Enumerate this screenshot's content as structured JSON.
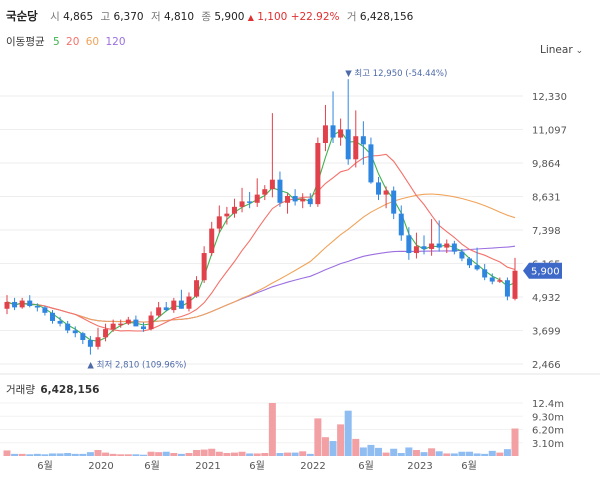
{
  "header": {
    "stock_name": "국순당",
    "open_label": "시",
    "open": "4,865",
    "high_label": "고",
    "high": "6,370",
    "low_label": "저",
    "low": "4,810",
    "close_label": "종",
    "close": "5,900",
    "change_arrow": "▲",
    "change": "1,100",
    "change_pct": "+22.92%",
    "volume_label": "거",
    "volume": "6,428,156"
  },
  "moving_average": {
    "label": "이동평균",
    "periods": [
      {
        "value": "5",
        "color": "#3fb34f"
      },
      {
        "value": "20",
        "color": "#f4726b"
      },
      {
        "value": "60",
        "color": "#f0a35a"
      },
      {
        "value": "120",
        "color": "#9b6fe0"
      }
    ]
  },
  "scale_selector": {
    "label": "Linear",
    "icon": "chevron-down-icon"
  },
  "colors": {
    "up": "#e0414a",
    "down": "#2f86e0",
    "vol_up": "#f2a0a4",
    "vol_down": "#8fbdf2",
    "current_tag": "#3d68c8",
    "annotation": "#4e6aa8"
  },
  "chart_data": {
    "type": "candlestick",
    "price_axis_ticks": [
      "12,330",
      "11,097",
      "9,864",
      "8,631",
      "7,398",
      "6,165",
      "4,932",
      "3,699",
      "2,466"
    ],
    "price_axis_values": [
      12330,
      11097,
      9864,
      8631,
      7398,
      6165,
      4932,
      3699,
      2466
    ],
    "current_price_label": "5,900",
    "current_price": 5900,
    "high_marker": {
      "arrow": "▼",
      "label": "최고",
      "value": "12,950",
      "pct": "(-54.44%)"
    },
    "low_marker": {
      "arrow": "▲",
      "label": "최저",
      "value": "2,810",
      "pct": "(109.96%)"
    },
    "x_axis_labels": [
      "6월",
      "2020",
      "6월",
      "2021",
      "6월",
      "2022",
      "6월",
      "2023",
      "6월"
    ],
    "volume_title": "거래량",
    "volume_value": "6,428,156",
    "volume_axis_ticks": [
      "12.4m",
      "9.30m",
      "6.20m",
      "3.10m"
    ],
    "volume_axis_values": [
      12.4,
      9.3,
      6.2,
      3.1
    ],
    "candles": [
      {
        "o": 4500,
        "h": 5000,
        "l": 4300,
        "c": 4750
      },
      {
        "o": 4750,
        "h": 4900,
        "l": 4450,
        "c": 4550
      },
      {
        "o": 4550,
        "h": 4900,
        "l": 4500,
        "c": 4800
      },
      {
        "o": 4800,
        "h": 5000,
        "l": 4550,
        "c": 4600
      },
      {
        "o": 4600,
        "h": 4700,
        "l": 4400,
        "c": 4550
      },
      {
        "o": 4550,
        "h": 4600,
        "l": 4250,
        "c": 4350
      },
      {
        "o": 4350,
        "h": 4450,
        "l": 3950,
        "c": 4050
      },
      {
        "o": 4050,
        "h": 4200,
        "l": 3850,
        "c": 3950
      },
      {
        "o": 3950,
        "h": 4050,
        "l": 3600,
        "c": 3700
      },
      {
        "o": 3700,
        "h": 3850,
        "l": 3450,
        "c": 3600
      },
      {
        "o": 3600,
        "h": 3650,
        "l": 3200,
        "c": 3350
      },
      {
        "o": 3350,
        "h": 3500,
        "l": 2810,
        "c": 3100
      },
      {
        "o": 3100,
        "h": 3800,
        "l": 3000,
        "c": 3450
      },
      {
        "o": 3450,
        "h": 3950,
        "l": 3300,
        "c": 3750
      },
      {
        "o": 3750,
        "h": 4100,
        "l": 3650,
        "c": 3950
      },
      {
        "o": 3950,
        "h": 4100,
        "l": 3800,
        "c": 3950
      },
      {
        "o": 3950,
        "h": 4200,
        "l": 3900,
        "c": 4100
      },
      {
        "o": 4100,
        "h": 4250,
        "l": 3950,
        "c": 3850
      },
      {
        "o": 3850,
        "h": 4000,
        "l": 3650,
        "c": 3750
      },
      {
        "o": 3750,
        "h": 4400,
        "l": 3700,
        "c": 4250
      },
      {
        "o": 4250,
        "h": 4750,
        "l": 4200,
        "c": 4550
      },
      {
        "o": 4550,
        "h": 4750,
        "l": 4400,
        "c": 4450
      },
      {
        "o": 4450,
        "h": 4900,
        "l": 4350,
        "c": 4800
      },
      {
        "o": 4800,
        "h": 5200,
        "l": 4500,
        "c": 4500
      },
      {
        "o": 4500,
        "h": 5100,
        "l": 4400,
        "c": 4950
      },
      {
        "o": 4950,
        "h": 5700,
        "l": 4900,
        "c": 5550
      },
      {
        "o": 5550,
        "h": 6800,
        "l": 5450,
        "c": 6550
      },
      {
        "o": 6550,
        "h": 7700,
        "l": 6450,
        "c": 7450
      },
      {
        "o": 7450,
        "h": 8300,
        "l": 7300,
        "c": 7900
      },
      {
        "o": 7900,
        "h": 8250,
        "l": 7600,
        "c": 8000
      },
      {
        "o": 8000,
        "h": 8550,
        "l": 7850,
        "c": 8250
      },
      {
        "o": 8250,
        "h": 8950,
        "l": 8050,
        "c": 8450
      },
      {
        "o": 8450,
        "h": 8800,
        "l": 8200,
        "c": 8400
      },
      {
        "o": 8400,
        "h": 9300,
        "l": 8250,
        "c": 8700
      },
      {
        "o": 8700,
        "h": 9050,
        "l": 8500,
        "c": 8900
      },
      {
        "o": 8900,
        "h": 11700,
        "l": 8600,
        "c": 9250
      },
      {
        "o": 9250,
        "h": 9550,
        "l": 8250,
        "c": 8400
      },
      {
        "o": 8400,
        "h": 8750,
        "l": 8000,
        "c": 8650
      },
      {
        "o": 8650,
        "h": 8900,
        "l": 8300,
        "c": 8450
      },
      {
        "o": 8450,
        "h": 8750,
        "l": 8200,
        "c": 8550
      },
      {
        "o": 8550,
        "h": 8750,
        "l": 8250,
        "c": 8350
      },
      {
        "o": 8350,
        "h": 10800,
        "l": 8250,
        "c": 10600
      },
      {
        "o": 10600,
        "h": 12000,
        "l": 10300,
        "c": 11250
      },
      {
        "o": 11250,
        "h": 12500,
        "l": 10600,
        "c": 10800
      },
      {
        "o": 10800,
        "h": 11500,
        "l": 10500,
        "c": 11100
      },
      {
        "o": 11100,
        "h": 12950,
        "l": 9800,
        "c": 10000
      },
      {
        "o": 10000,
        "h": 11800,
        "l": 9700,
        "c": 10850
      },
      {
        "o": 10850,
        "h": 11400,
        "l": 9800,
        "c": 10550
      },
      {
        "o": 10550,
        "h": 10800,
        "l": 9100,
        "c": 9150
      },
      {
        "o": 9150,
        "h": 9350,
        "l": 8500,
        "c": 8700
      },
      {
        "o": 8700,
        "h": 9000,
        "l": 8200,
        "c": 8850
      },
      {
        "o": 8850,
        "h": 9000,
        "l": 7800,
        "c": 8000
      },
      {
        "o": 8000,
        "h": 8300,
        "l": 7000,
        "c": 7200
      },
      {
        "o": 7200,
        "h": 7500,
        "l": 6300,
        "c": 6550
      },
      {
        "o": 6550,
        "h": 7300,
        "l": 6350,
        "c": 6800
      },
      {
        "o": 6800,
        "h": 7200,
        "l": 6500,
        "c": 6700
      },
      {
        "o": 6700,
        "h": 7800,
        "l": 6450,
        "c": 6900
      },
      {
        "o": 6900,
        "h": 7750,
        "l": 6600,
        "c": 6750
      },
      {
        "o": 6750,
        "h": 7050,
        "l": 6550,
        "c": 6900
      },
      {
        "o": 6900,
        "h": 7000,
        "l": 6500,
        "c": 6600
      },
      {
        "o": 6600,
        "h": 6700,
        "l": 6250,
        "c": 6350
      },
      {
        "o": 6350,
        "h": 6400,
        "l": 6000,
        "c": 6100
      },
      {
        "o": 6100,
        "h": 6750,
        "l": 5900,
        "c": 5950
      },
      {
        "o": 5950,
        "h": 6150,
        "l": 5550,
        "c": 5650
      },
      {
        "o": 5650,
        "h": 5800,
        "l": 5400,
        "c": 5500
      },
      {
        "o": 5500,
        "h": 5650,
        "l": 5450,
        "c": 5550
      },
      {
        "o": 5550,
        "h": 5650,
        "l": 4810,
        "c": 4950
      },
      {
        "o": 4865,
        "h": 6370,
        "l": 4810,
        "c": 5900
      }
    ],
    "volumes": [
      1.3,
      0.5,
      0.5,
      0.4,
      0.5,
      0.4,
      0.6,
      0.6,
      0.7,
      0.5,
      0.5,
      0.9,
      1.4,
      0.8,
      0.5,
      0.4,
      0.4,
      0.4,
      0.3,
      1.0,
      0.9,
      1.0,
      0.7,
      0.5,
      0.7,
      1.4,
      1.5,
      1.7,
      1.0,
      0.7,
      0.8,
      1.0,
      0.6,
      0.6,
      0.7,
      12.4,
      0.7,
      0.8,
      0.8,
      1.1,
      0.5,
      8.8,
      4.4,
      3.5,
      7.4,
      10.6,
      4.0,
      2.0,
      2.6,
      1.9,
      0.8,
      1.7,
      0.7,
      2.0,
      1.4,
      0.9,
      1.8,
      1.1,
      0.6,
      0.6,
      1.0,
      1.0,
      0.6,
      0.5,
      1.2,
      0.8,
      1.6,
      6.43
    ]
  }
}
